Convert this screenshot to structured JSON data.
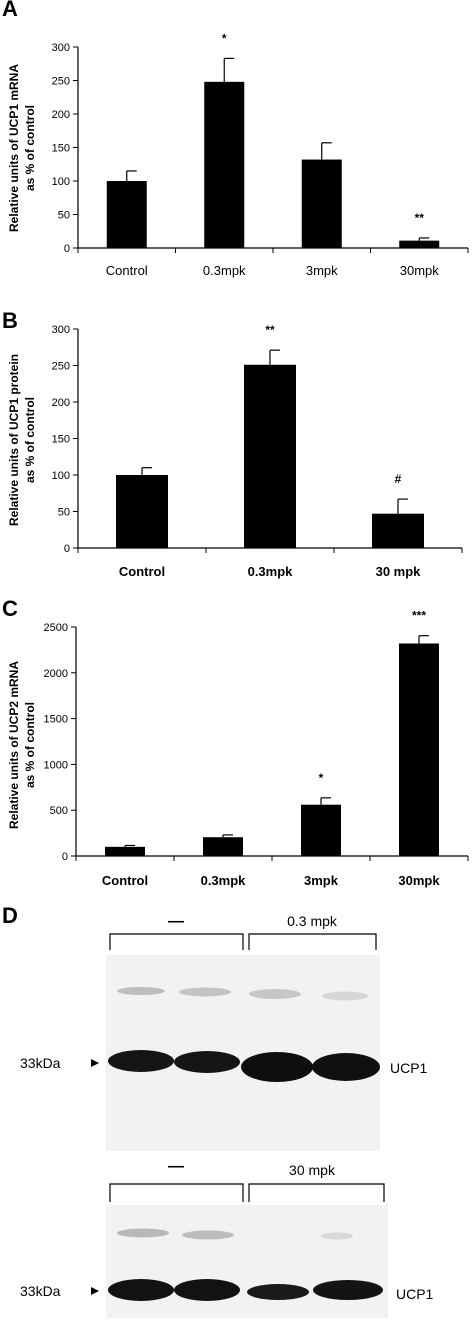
{
  "chart_data": [
    {
      "panel": "A",
      "type": "bar",
      "categories": [
        "Control",
        "0.3mpk",
        "3mpk",
        "30mpk"
      ],
      "values": [
        100,
        248,
        132,
        11
      ],
      "errors": [
        15,
        35,
        25,
        4
      ],
      "annotations": [
        "",
        "*",
        "",
        "**"
      ],
      "ylabel_lines": [
        "Relative units of UCP1 mRNA",
        "as % of control"
      ],
      "ylim": [
        0,
        300
      ],
      "yticks": [
        0,
        50,
        100,
        150,
        200,
        250,
        300
      ],
      "grid": false
    },
    {
      "panel": "B",
      "type": "bar",
      "categories": [
        "Control",
        "0.3mpk",
        "30 mpk"
      ],
      "values": [
        100,
        251,
        47
      ],
      "errors": [
        10,
        20,
        20
      ],
      "annotations": [
        "",
        "**",
        "#"
      ],
      "ylabel_lines": [
        "Relative units of UCP1 protein",
        "as % of control"
      ],
      "ylim": [
        0,
        300
      ],
      "yticks": [
        0,
        50,
        100,
        150,
        200,
        250,
        300
      ],
      "grid": false
    },
    {
      "panel": "C",
      "type": "bar",
      "categories": [
        "Control",
        "0.3mpk",
        "3mpk",
        "30mpk"
      ],
      "values": [
        100,
        205,
        560,
        2320
      ],
      "errors": [
        15,
        25,
        75,
        85
      ],
      "annotations": [
        "",
        "",
        "*",
        "***"
      ],
      "ylabel_lines": [
        "Relative units of UCP2 mRNA",
        "as % of control"
      ],
      "ylim": [
        0,
        2500
      ],
      "yticks": [
        0,
        500,
        1000,
        1500,
        2000,
        2500
      ],
      "grid": false
    }
  ],
  "blot": {
    "panel": "D",
    "top": {
      "left_group": "—",
      "right_group": "0.3 mpk",
      "marker": "33kDa",
      "band": "UCP1"
    },
    "bottom": {
      "left_group": "—",
      "right_group": "30 mpk",
      "marker": "33kDa",
      "band": "UCP1"
    }
  }
}
